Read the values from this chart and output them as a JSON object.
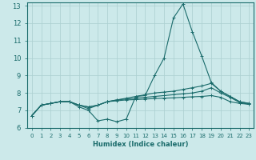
{
  "xlabel": "Humidex (Indice chaleur)",
  "xlim": [
    -0.5,
    23.5
  ],
  "ylim": [
    6,
    13.2
  ],
  "yticks": [
    6,
    7,
    8,
    9,
    10,
    11,
    12,
    13
  ],
  "xticks": [
    0,
    1,
    2,
    3,
    4,
    5,
    6,
    7,
    8,
    9,
    10,
    11,
    12,
    13,
    14,
    15,
    16,
    17,
    18,
    19,
    20,
    21,
    22,
    23
  ],
  "background_color": "#cce9ea",
  "grid_color": "#aacfd0",
  "line_color": "#1a6b6b",
  "lines": [
    {
      "x": [
        0,
        1,
        2,
        3,
        4,
        5,
        6,
        7,
        8,
        9,
        10,
        11,
        12,
        13,
        14,
        15,
        16,
        17,
        18,
        19,
        20,
        21,
        22,
        23
      ],
      "y": [
        6.7,
        7.3,
        7.4,
        7.5,
        7.5,
        7.2,
        7.0,
        6.4,
        6.5,
        6.35,
        6.5,
        7.8,
        7.85,
        9.0,
        10.0,
        12.3,
        13.1,
        11.5,
        10.1,
        8.6,
        8.1,
        7.8,
        7.5,
        7.4
      ]
    },
    {
      "x": [
        0,
        1,
        2,
        3,
        4,
        5,
        6,
        7,
        8,
        9,
        10,
        11,
        12,
        13,
        14,
        15,
        16,
        17,
        18,
        19,
        20,
        21,
        22,
        23
      ],
      "y": [
        6.7,
        7.3,
        7.4,
        7.5,
        7.5,
        7.3,
        7.2,
        7.3,
        7.5,
        7.6,
        7.7,
        7.8,
        7.9,
        8.0,
        8.05,
        8.1,
        8.2,
        8.3,
        8.4,
        8.55,
        8.1,
        7.8,
        7.5,
        7.4
      ]
    },
    {
      "x": [
        0,
        1,
        2,
        3,
        4,
        5,
        6,
        7,
        8,
        9,
        10,
        11,
        12,
        13,
        14,
        15,
        16,
        17,
        18,
        19,
        20,
        21,
        22,
        23
      ],
      "y": [
        6.7,
        7.3,
        7.4,
        7.5,
        7.5,
        7.3,
        7.2,
        7.3,
        7.5,
        7.6,
        7.65,
        7.7,
        7.75,
        7.8,
        7.85,
        7.9,
        7.95,
        8.0,
        8.1,
        8.3,
        8.0,
        7.75,
        7.45,
        7.35
      ]
    },
    {
      "x": [
        0,
        1,
        2,
        3,
        4,
        5,
        6,
        7,
        8,
        9,
        10,
        11,
        12,
        13,
        14,
        15,
        16,
        17,
        18,
        19,
        20,
        21,
        22,
        23
      ],
      "y": [
        6.7,
        7.3,
        7.4,
        7.5,
        7.5,
        7.3,
        7.1,
        7.3,
        7.5,
        7.55,
        7.6,
        7.62,
        7.65,
        7.68,
        7.7,
        7.72,
        7.75,
        7.78,
        7.8,
        7.85,
        7.75,
        7.5,
        7.4,
        7.35
      ]
    }
  ]
}
